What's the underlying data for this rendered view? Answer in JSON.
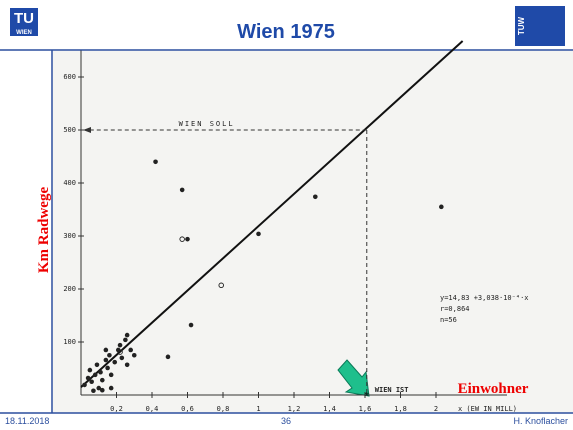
{
  "slide": {
    "title": "Wien 1975",
    "logo_left_top": "TU",
    "logo_left_bottom": "WIEN",
    "logo_right": "TUW",
    "date": "18.11.2018",
    "page": "36",
    "author": "H. Knoflacher"
  },
  "chart_data": {
    "type": "scatter",
    "y_label": "Km Radwege",
    "x_label": "Einwohner",
    "x_axis_title": "x (EW IN MILL)",
    "xlim": [
      0,
      2.4
    ],
    "ylim": [
      0,
      650
    ],
    "xticks": [
      {
        "value": 0.2,
        "label": "0,2"
      },
      {
        "value": 0.4,
        "label": "0,4"
      },
      {
        "value": 0.6,
        "label": "0,6"
      },
      {
        "value": 0.8,
        "label": "0,8"
      },
      1,
      {
        "value": 1.2,
        "label": "1,2"
      },
      {
        "value": 1.4,
        "label": "1,4"
      },
      {
        "value": 1.6,
        "label": "1,6"
      },
      {
        "value": 1.8,
        "label": "1,8"
      },
      2
    ],
    "yticks": [
      100,
      200,
      300,
      400,
      500,
      600
    ],
    "series": [
      {
        "marker": "filled",
        "x": [
          0.02,
          0.04,
          0.05,
          0.06,
          0.08,
          0.09,
          0.11,
          0.12,
          0.14,
          0.15,
          0.16,
          0.17,
          0.19,
          0.21,
          0.22,
          0.23,
          0.25,
          0.26,
          0.28,
          0.3,
          0.1,
          0.07,
          0.12,
          0.17,
          0.26,
          0.14,
          0.42,
          0.57,
          0.6,
          1.0,
          1.32,
          2.03,
          0.62,
          0.49
        ],
        "values": [
          19,
          32,
          47,
          25,
          38,
          57,
          43,
          28,
          66,
          51,
          75,
          38,
          62,
          85,
          94,
          70,
          104,
          113,
          85,
          75,
          13,
          8,
          9,
          13,
          57,
          85,
          440,
          387,
          294,
          304,
          374,
          355,
          132,
          72
        ]
      },
      {
        "marker": "open",
        "x": [
          0.22,
          0.57,
          0.79
        ],
        "values": [
          81,
          294,
          207
        ]
      }
    ],
    "fit": {
      "intercept": 14.83,
      "slope": 303.8,
      "x_end": 2.15
    },
    "reference": {
      "x": 1.61,
      "y": 500,
      "label_soll": "WIEN SOLL",
      "label_ist": "WIEN IST"
    },
    "annotations": [
      "y=14,83 +3,038·10⁻⁴·x",
      "r=0,864",
      "n=56"
    ]
  }
}
